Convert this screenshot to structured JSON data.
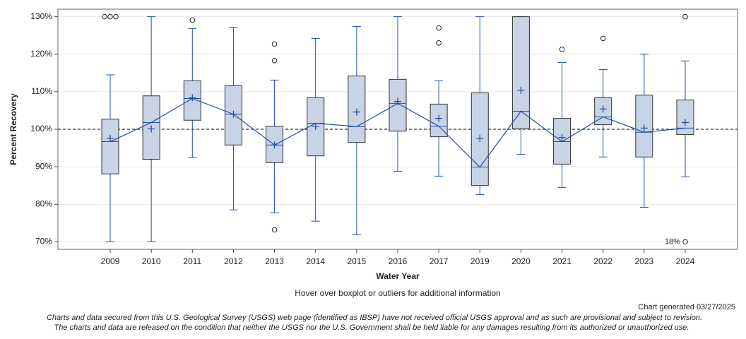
{
  "chart_data": {
    "type": "box",
    "x_label": "Water Year",
    "y_label": "Percent Recovery",
    "categories": [
      "2009",
      "2010",
      "2011",
      "2012",
      "2013",
      "2014",
      "2015",
      "2016",
      "2017",
      "2019",
      "2020",
      "2021",
      "2022",
      "2023",
      "2024"
    ],
    "boxes": [
      {
        "min": 70,
        "q1": 88.1,
        "median": 96.7,
        "q3": 102.7,
        "max": 114.5,
        "mean": 97.6,
        "outliers": [
          130,
          130,
          130
        ]
      },
      {
        "min": 70,
        "q1": 92.0,
        "median": 101.8,
        "q3": 108.9,
        "max": 130,
        "mean": 100.1,
        "outliers": []
      },
      {
        "min": 92.4,
        "q1": 102.4,
        "median": 108.2,
        "q3": 112.9,
        "max": 126.8,
        "mean": 108.4,
        "outliers": [
          129.1
        ]
      },
      {
        "min": 78.5,
        "q1": 95.8,
        "median": 104.0,
        "q3": 111.6,
        "max": 127.2,
        "mean": 104.0,
        "outliers": []
      },
      {
        "min": 77.7,
        "q1": 91.1,
        "median": 95.8,
        "q3": 100.8,
        "max": 113.1,
        "mean": 95.8,
        "outliers": [
          122.7,
          118.3,
          73.2
        ]
      },
      {
        "min": 75.5,
        "q1": 92.9,
        "median": 101.6,
        "q3": 108.4,
        "max": 124.2,
        "mean": 100.8,
        "outliers": []
      },
      {
        "min": 71.9,
        "q1": 96.5,
        "median": 100.7,
        "q3": 114.2,
        "max": 127.4,
        "mean": 104.6,
        "outliers": []
      },
      {
        "min": 88.8,
        "q1": 99.5,
        "median": 106.9,
        "q3": 113.3,
        "max": 130,
        "mean": 107.4,
        "outliers": []
      },
      {
        "min": 87.5,
        "q1": 98.0,
        "median": 100.8,
        "q3": 106.7,
        "max": 112.9,
        "mean": 102.9,
        "outliers": [
          127.0,
          123.0
        ]
      },
      {
        "min": 82.6,
        "q1": 85.0,
        "median": 89.9,
        "q3": 109.7,
        "max": 130,
        "mean": 97.6,
        "outliers": []
      },
      {
        "min": 93.3,
        "q1": 100.1,
        "median": 104.8,
        "q3": 130,
        "max": 130,
        "mean": 110.4,
        "outliers": []
      },
      {
        "min": 84.5,
        "q1": 90.7,
        "median": 96.7,
        "q3": 102.9,
        "max": 117.8,
        "mean": 97.8,
        "outliers": [
          121.3
        ]
      },
      {
        "min": 92.6,
        "q1": 101.2,
        "median": 103.3,
        "q3": 108.4,
        "max": 115.9,
        "mean": 105.4,
        "outliers": [
          124.2
        ]
      },
      {
        "min": 79.2,
        "q1": 92.6,
        "median": 99.2,
        "q3": 109.1,
        "max": 120.0,
        "mean": 100.3,
        "outliers": []
      },
      {
        "min": 87.3,
        "q1": 98.6,
        "median": 100.3,
        "q3": 107.8,
        "max": 118.2,
        "mean": 101.8,
        "outliers": [
          130,
          70
        ]
      }
    ],
    "annotations": [
      {
        "label": "18%",
        "x": "2024",
        "y": 70
      }
    ],
    "reference_line": 100,
    "box_color": "#c9d3e6",
    "line_color": "#2451a6",
    "ylim": [
      68,
      132
    ],
    "yticks": [
      {
        "value": 70,
        "label": "70%"
      },
      {
        "value": 80,
        "label": "80%"
      },
      {
        "value": 90,
        "label": "90%"
      },
      {
        "value": 100,
        "label": "100%"
      },
      {
        "value": 110,
        "label": "110%"
      },
      {
        "value": 120,
        "label": "120%"
      },
      {
        "value": 130,
        "label": "130%"
      }
    ],
    "grid": true
  },
  "page": {
    "hover_note": "Hover over boxplot or outliers for additional information",
    "generated": "Chart generated 03/27/2025",
    "disclaimer": [
      "Charts and data secured from this U.S. Geological Survey (USGS) web page (identified as IBSP) have not received official USGS approval and as such are provisional and subject to revision.",
      "The charts and data are released on the condition that neither the USGS nor the U.S. Government shall be held liable for any damages resulting from its authorized or unauthorized use."
    ]
  }
}
